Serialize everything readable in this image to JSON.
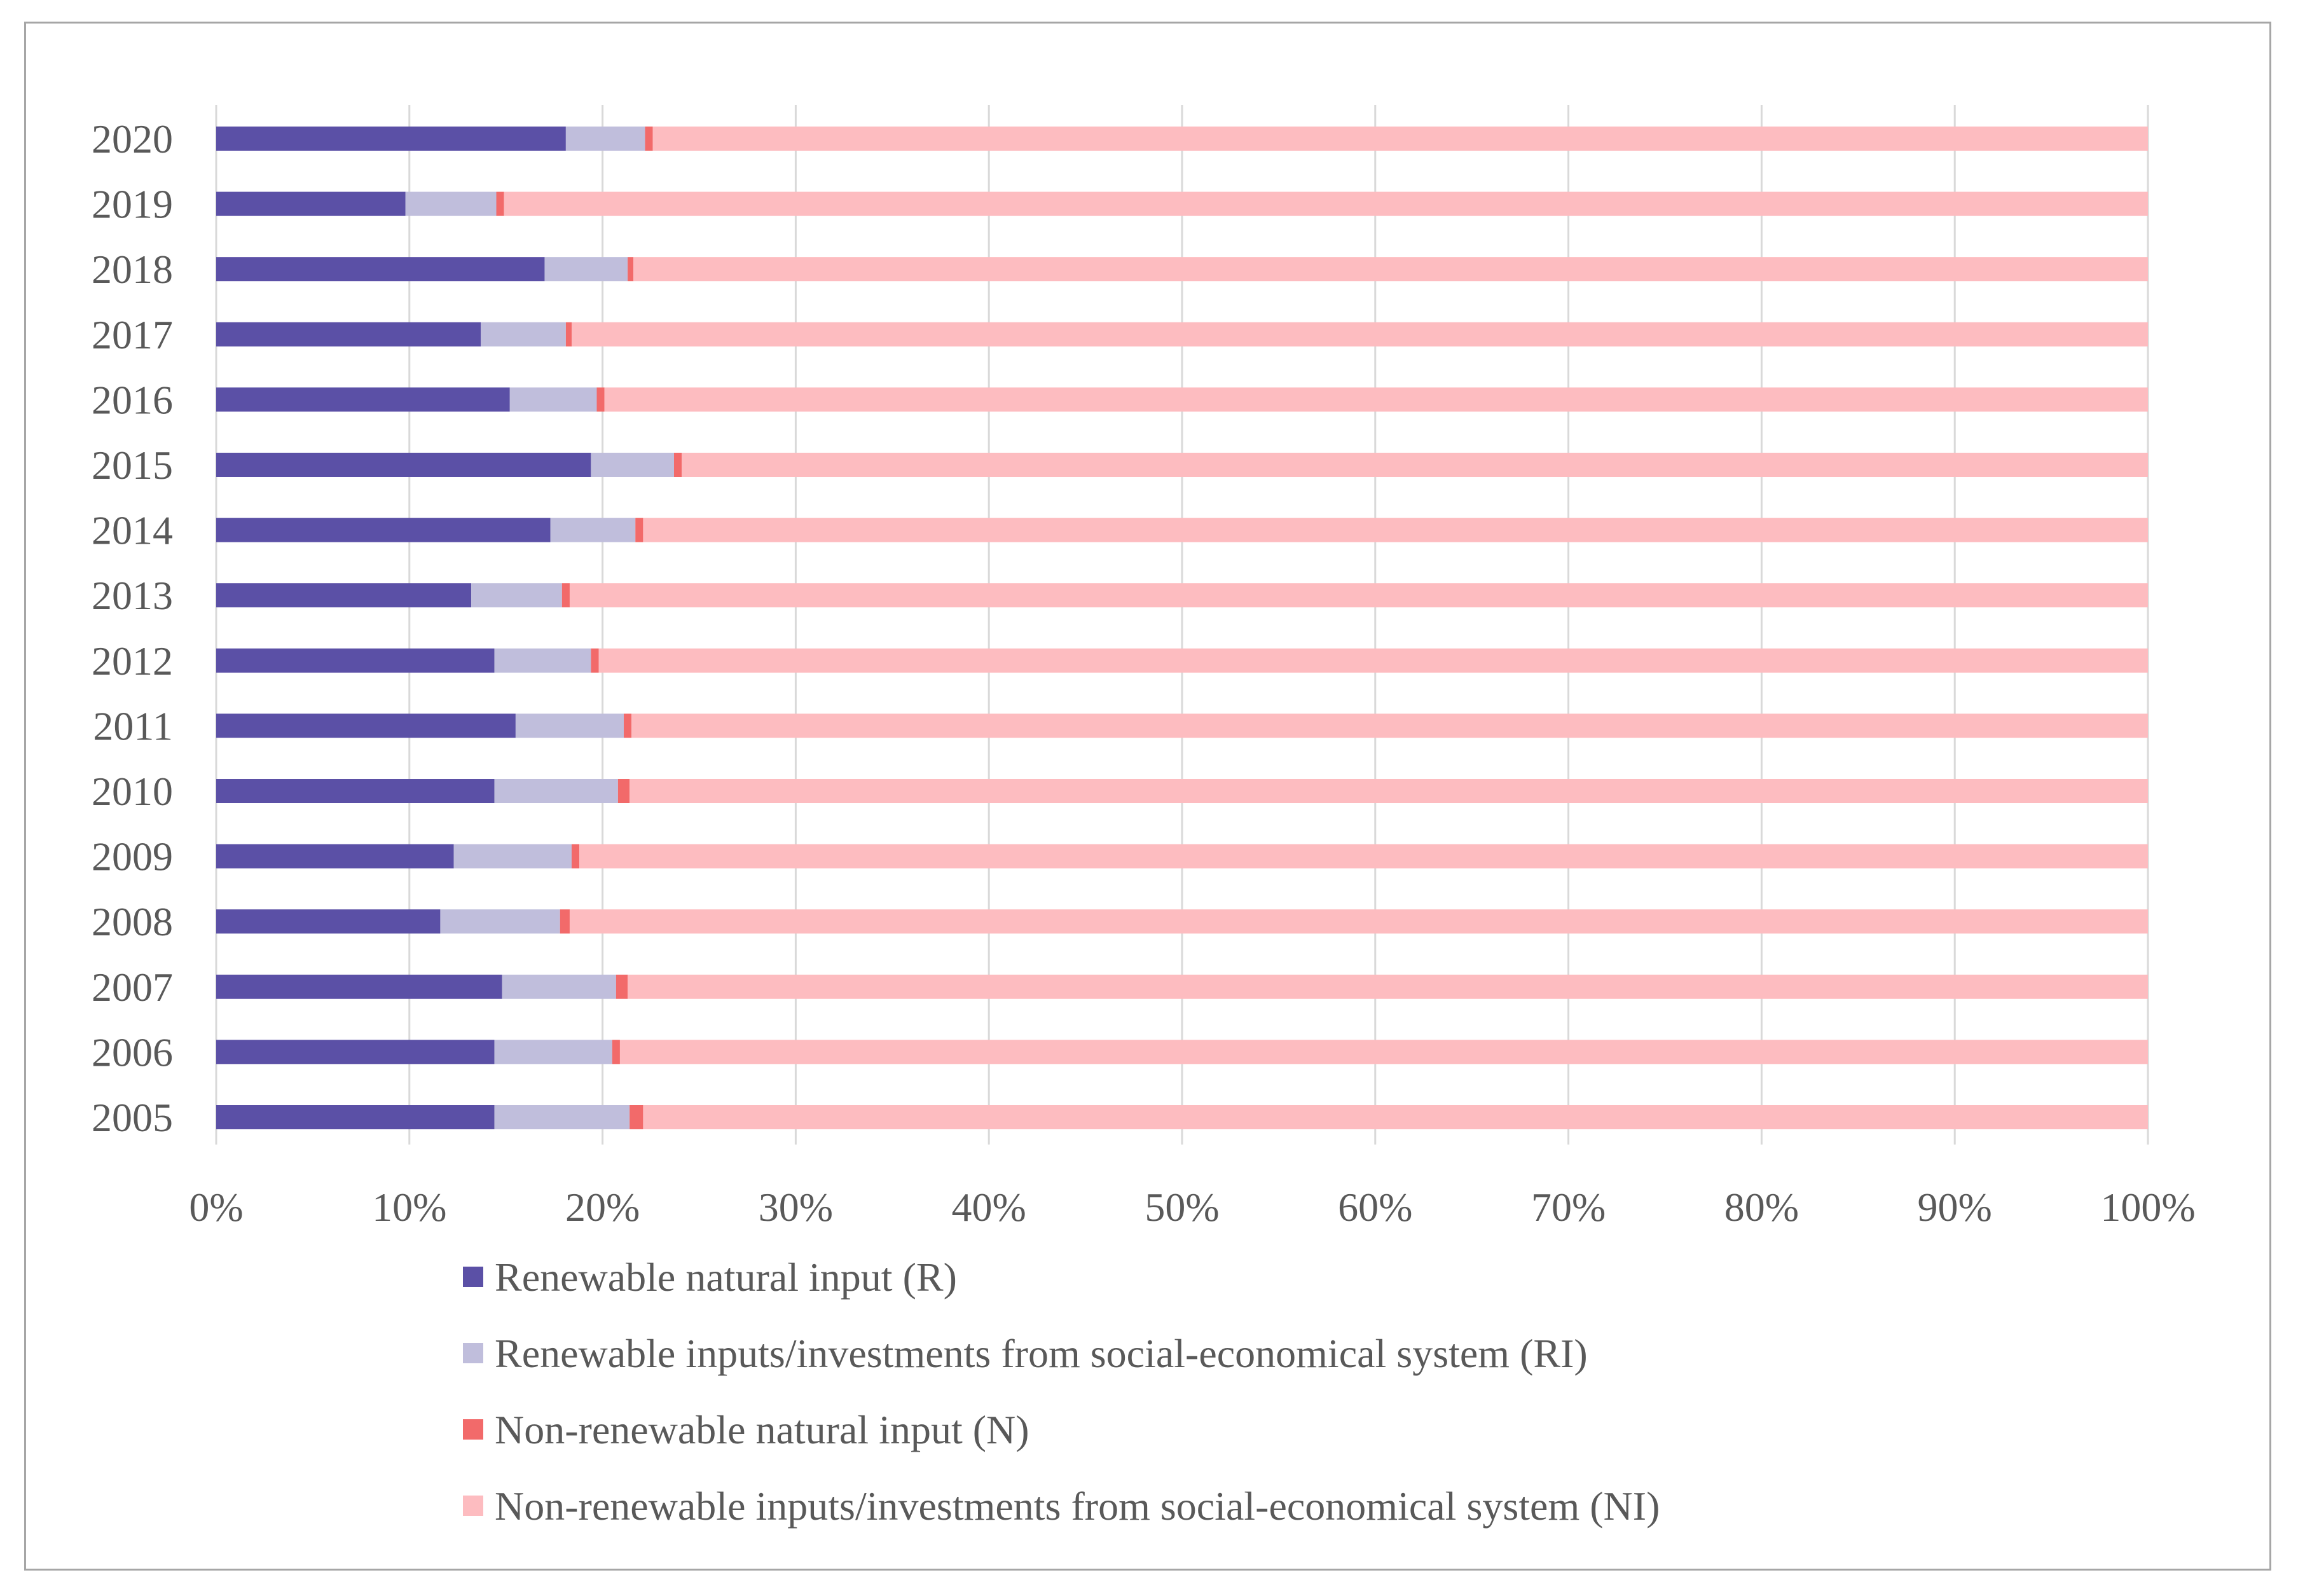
{
  "chart_data": {
    "type": "bar",
    "orientation": "horizontal",
    "stacked": true,
    "normalized": "percent",
    "title": "",
    "xlabel": "",
    "ylabel": "",
    "xlim": [
      0,
      100
    ],
    "grid": "vertical",
    "legend_position": "bottom",
    "x_tick_labels": [
      "0%",
      "10%",
      "20%",
      "30%",
      "40%",
      "50%",
      "60%",
      "70%",
      "80%",
      "90%",
      "100%"
    ],
    "categories": [
      "2020",
      "2019",
      "2018",
      "2017",
      "2016",
      "2015",
      "2014",
      "2013",
      "2012",
      "2011",
      "2010",
      "2009",
      "2008",
      "2007",
      "2006",
      "2005"
    ],
    "series": [
      {
        "name": "Renewable natural input (R)",
        "color": "#5b50a6",
        "values": [
          18.1,
          9.8,
          17.0,
          13.7,
          15.2,
          19.4,
          17.3,
          13.2,
          14.4,
          15.5,
          14.4,
          12.3,
          11.6,
          14.8,
          14.4,
          14.4
        ]
      },
      {
        "name": "Renewable inputs/investments from social-economical system (RI)",
        "color": "#c0bedc",
        "values": [
          4.1,
          4.7,
          4.3,
          4.4,
          4.5,
          4.3,
          4.4,
          4.7,
          5.0,
          5.6,
          6.4,
          6.1,
          6.2,
          5.9,
          6.1,
          7.0
        ]
      },
      {
        "name": "Non-renewable natural input (N)",
        "color": "#f26a6a",
        "values": [
          0.4,
          0.4,
          0.3,
          0.3,
          0.4,
          0.4,
          0.4,
          0.4,
          0.4,
          0.4,
          0.6,
          0.4,
          0.5,
          0.6,
          0.4,
          0.7
        ]
      },
      {
        "name": "Non-renewable inputs/investments from social-economical system (NI)",
        "color": "#fdbcc0",
        "values": [
          77.4,
          85.1,
          78.4,
          81.6,
          79.9,
          75.9,
          77.9,
          81.7,
          80.2,
          78.5,
          78.6,
          81.2,
          81.7,
          78.7,
          79.1,
          77.9
        ]
      }
    ]
  }
}
